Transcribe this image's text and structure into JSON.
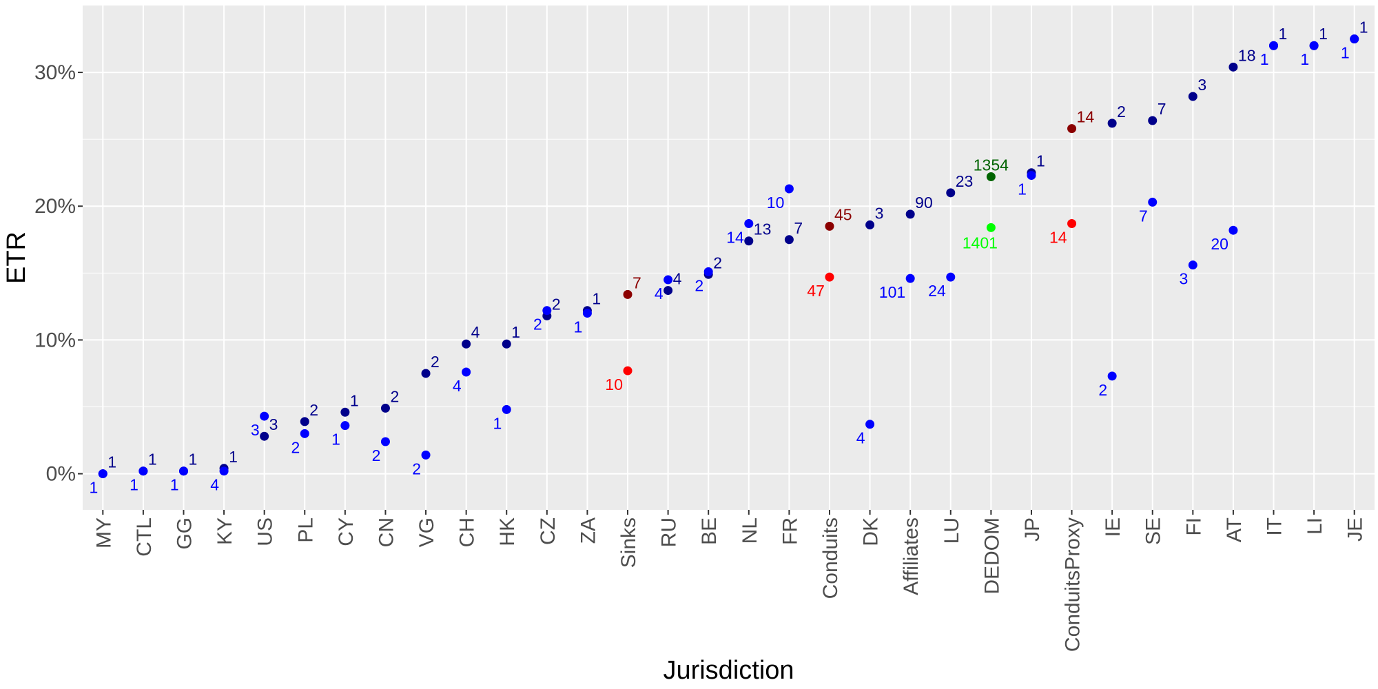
{
  "chart_data": {
    "type": "scatter",
    "title": "",
    "xlabel": "Jurisdiction",
    "ylabel": "ETR",
    "ylim": [
      -0.027,
      0.35
    ],
    "yticks": [
      0,
      0.1,
      0.2,
      0.3
    ],
    "ytick_labels": [
      "0%",
      "10%",
      "20%",
      "30%"
    ],
    "grid": true,
    "legend": "none",
    "categories": [
      "MY",
      "CTL",
      "GG",
      "KY",
      "US",
      "PL",
      "CY",
      "CN",
      "VG",
      "CH",
      "HK",
      "CZ",
      "ZA",
      "Sinks",
      "RU",
      "BE",
      "NL",
      "FR",
      "Conduits",
      "DK",
      "Affiliates",
      "LU",
      "DEDOM",
      "JP",
      "ConduitsProxy",
      "IE",
      "SE",
      "FI",
      "AT",
      "IT",
      "LI",
      "JE"
    ],
    "colors": {
      "navy": "#00008b",
      "blue": "#0000ff",
      "darkred": "#8b0000",
      "red": "#ff0000",
      "darkgreen": "#006400",
      "green": "#00ff00"
    },
    "points": [
      {
        "x": "MY",
        "y": 0.0,
        "label": "1",
        "color": "navy",
        "pos": "tr"
      },
      {
        "x": "MY",
        "y": 0.0,
        "label": "1",
        "color": "blue",
        "pos": "bl"
      },
      {
        "x": "CTL",
        "y": 0.002,
        "label": "1",
        "color": "navy",
        "pos": "tr"
      },
      {
        "x": "CTL",
        "y": 0.002,
        "label": "1",
        "color": "blue",
        "pos": "bl"
      },
      {
        "x": "GG",
        "y": 0.002,
        "label": "1",
        "color": "navy",
        "pos": "tr"
      },
      {
        "x": "GG",
        "y": 0.002,
        "label": "1",
        "color": "blue",
        "pos": "bl"
      },
      {
        "x": "KY",
        "y": 0.004,
        "label": "1",
        "color": "navy",
        "pos": "tr"
      },
      {
        "x": "KY",
        "y": 0.002,
        "label": "4",
        "color": "blue",
        "pos": "bl"
      },
      {
        "x": "US",
        "y": 0.028,
        "label": "3",
        "color": "navy",
        "pos": "tr"
      },
      {
        "x": "US",
        "y": 0.043,
        "label": "3",
        "color": "blue",
        "pos": "bl"
      },
      {
        "x": "PL",
        "y": 0.039,
        "label": "2",
        "color": "navy",
        "pos": "tr"
      },
      {
        "x": "PL",
        "y": 0.03,
        "label": "2",
        "color": "blue",
        "pos": "bl"
      },
      {
        "x": "CY",
        "y": 0.046,
        "label": "1",
        "color": "navy",
        "pos": "tr"
      },
      {
        "x": "CY",
        "y": 0.036,
        "label": "1",
        "color": "blue",
        "pos": "bl"
      },
      {
        "x": "CN",
        "y": 0.049,
        "label": "2",
        "color": "navy",
        "pos": "tr"
      },
      {
        "x": "CN",
        "y": 0.024,
        "label": "2",
        "color": "blue",
        "pos": "bl"
      },
      {
        "x": "VG",
        "y": 0.075,
        "label": "2",
        "color": "navy",
        "pos": "tr"
      },
      {
        "x": "VG",
        "y": 0.014,
        "label": "2",
        "color": "blue",
        "pos": "bl"
      },
      {
        "x": "CH",
        "y": 0.097,
        "label": "4",
        "color": "navy",
        "pos": "tr"
      },
      {
        "x": "CH",
        "y": 0.076,
        "label": "4",
        "color": "blue",
        "pos": "bl"
      },
      {
        "x": "HK",
        "y": 0.097,
        "label": "1",
        "color": "navy",
        "pos": "tr"
      },
      {
        "x": "HK",
        "y": 0.048,
        "label": "1",
        "color": "blue",
        "pos": "bl"
      },
      {
        "x": "CZ",
        "y": 0.118,
        "label": "2",
        "color": "navy",
        "pos": "tr"
      },
      {
        "x": "CZ",
        "y": 0.122,
        "label": "2",
        "color": "blue",
        "pos": "bl"
      },
      {
        "x": "ZA",
        "y": 0.122,
        "label": "1",
        "color": "navy",
        "pos": "tr"
      },
      {
        "x": "ZA",
        "y": 0.12,
        "label": "1",
        "color": "blue",
        "pos": "bl"
      },
      {
        "x": "Sinks",
        "y": 0.134,
        "label": "7",
        "color": "darkred",
        "pos": "tr"
      },
      {
        "x": "Sinks",
        "y": 0.077,
        "label": "10",
        "color": "red",
        "pos": "bl"
      },
      {
        "x": "RU",
        "y": 0.137,
        "label": "4",
        "color": "navy",
        "pos": "tr"
      },
      {
        "x": "RU",
        "y": 0.145,
        "label": "4",
        "color": "blue",
        "pos": "bl"
      },
      {
        "x": "BE",
        "y": 0.149,
        "label": "2",
        "color": "navy",
        "pos": "tr"
      },
      {
        "x": "BE",
        "y": 0.151,
        "label": "2",
        "color": "blue",
        "pos": "bl"
      },
      {
        "x": "NL",
        "y": 0.174,
        "label": "13",
        "color": "navy",
        "pos": "tr"
      },
      {
        "x": "NL",
        "y": 0.187,
        "label": "14",
        "color": "blue",
        "pos": "bl"
      },
      {
        "x": "FR",
        "y": 0.175,
        "label": "7",
        "color": "navy",
        "pos": "tr"
      },
      {
        "x": "FR",
        "y": 0.213,
        "label": "10",
        "color": "blue",
        "pos": "bl"
      },
      {
        "x": "Conduits",
        "y": 0.185,
        "label": "45",
        "color": "darkred",
        "pos": "tr"
      },
      {
        "x": "Conduits",
        "y": 0.147,
        "label": "47",
        "color": "red",
        "pos": "bl"
      },
      {
        "x": "DK",
        "y": 0.186,
        "label": "3",
        "color": "navy",
        "pos": "tr"
      },
      {
        "x": "DK",
        "y": 0.037,
        "label": "4",
        "color": "blue",
        "pos": "bl"
      },
      {
        "x": "Affiliates",
        "y": 0.194,
        "label": "90",
        "color": "navy",
        "pos": "tr"
      },
      {
        "x": "Affiliates",
        "y": 0.146,
        "label": "101",
        "color": "blue",
        "pos": "bl"
      },
      {
        "x": "LU",
        "y": 0.21,
        "label": "23",
        "color": "navy",
        "pos": "tr"
      },
      {
        "x": "LU",
        "y": 0.147,
        "label": "24",
        "color": "blue",
        "pos": "bl"
      },
      {
        "x": "DEDOM",
        "y": 0.222,
        "label": "1354",
        "color": "darkgreen",
        "pos": "tc"
      },
      {
        "x": "DEDOM",
        "y": 0.184,
        "label": "1401",
        "color": "green",
        "pos": "bc"
      },
      {
        "x": "JP",
        "y": 0.225,
        "label": "1",
        "color": "navy",
        "pos": "tr"
      },
      {
        "x": "JP",
        "y": 0.223,
        "label": "1",
        "color": "blue",
        "pos": "bl"
      },
      {
        "x": "ConduitsProxy",
        "y": 0.258,
        "label": "14",
        "color": "darkred",
        "pos": "tr"
      },
      {
        "x": "ConduitsProxy",
        "y": 0.187,
        "label": "14",
        "color": "red",
        "pos": "bl"
      },
      {
        "x": "IE",
        "y": 0.262,
        "label": "2",
        "color": "navy",
        "pos": "tr"
      },
      {
        "x": "IE",
        "y": 0.073,
        "label": "2",
        "color": "blue",
        "pos": "bl"
      },
      {
        "x": "SE",
        "y": 0.264,
        "label": "7",
        "color": "navy",
        "pos": "tr"
      },
      {
        "x": "SE",
        "y": 0.203,
        "label": "7",
        "color": "blue",
        "pos": "bl"
      },
      {
        "x": "FI",
        "y": 0.282,
        "label": "3",
        "color": "navy",
        "pos": "tr"
      },
      {
        "x": "FI",
        "y": 0.156,
        "label": "3",
        "color": "blue",
        "pos": "bl"
      },
      {
        "x": "AT",
        "y": 0.304,
        "label": "18",
        "color": "navy",
        "pos": "tr"
      },
      {
        "x": "AT",
        "y": 0.182,
        "label": "20",
        "color": "blue",
        "pos": "bl"
      },
      {
        "x": "IT",
        "y": 0.32,
        "label": "1",
        "color": "navy",
        "pos": "tr"
      },
      {
        "x": "IT",
        "y": 0.32,
        "label": "1",
        "color": "blue",
        "pos": "bl"
      },
      {
        "x": "LI",
        "y": 0.32,
        "label": "1",
        "color": "navy",
        "pos": "tr"
      },
      {
        "x": "LI",
        "y": 0.32,
        "label": "1",
        "color": "blue",
        "pos": "bl"
      },
      {
        "x": "JE",
        "y": 0.325,
        "label": "1",
        "color": "navy",
        "pos": "tr"
      },
      {
        "x": "JE",
        "y": 0.325,
        "label": "1",
        "color": "blue",
        "pos": "bl"
      }
    ]
  }
}
